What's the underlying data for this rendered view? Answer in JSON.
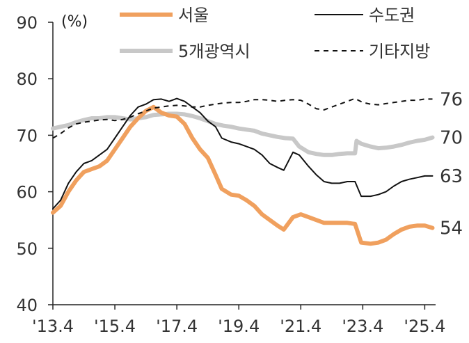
{
  "chart_data": {
    "type": "line",
    "unit_label": "(%)",
    "title": "",
    "xlabel": "",
    "ylabel": "",
    "ylim": [
      40,
      90
    ],
    "yticks": [
      40,
      50,
      60,
      70,
      80,
      90
    ],
    "xlim": [
      2013.25,
      2025.6
    ],
    "xticks": [
      {
        "label": "'13.4",
        "value": 2013.25
      },
      {
        "label": "'15.4",
        "value": 2015.25
      },
      {
        "label": "'17.4",
        "value": 2017.25
      },
      {
        "label": "'19.4",
        "value": 2019.25
      },
      {
        "label": "'21.4",
        "value": 2021.25
      },
      {
        "label": "'23.4",
        "value": 2023.25
      },
      {
        "label": "'25.4",
        "value": 2025.25
      }
    ],
    "grid": false,
    "legend_position": "top",
    "series": [
      {
        "name": "서울",
        "color": "#F0A05E",
        "style": "solid-thick",
        "end_label": "54",
        "points": [
          [
            2013.25,
            56.3
          ],
          [
            2013.5,
            57.5
          ],
          [
            2013.75,
            60
          ],
          [
            2014,
            62
          ],
          [
            2014.25,
            63.5
          ],
          [
            2014.5,
            64
          ],
          [
            2014.75,
            64.5
          ],
          [
            2015,
            65.5
          ],
          [
            2015.25,
            67.5
          ],
          [
            2015.5,
            69.5
          ],
          [
            2015.75,
            71.5
          ],
          [
            2016,
            73
          ],
          [
            2016.25,
            74.3
          ],
          [
            2016.5,
            75
          ],
          [
            2016.75,
            74
          ],
          [
            2017,
            73.5
          ],
          [
            2017.25,
            73.3
          ],
          [
            2017.5,
            72
          ],
          [
            2017.75,
            69.5
          ],
          [
            2018,
            67.5
          ],
          [
            2018.25,
            66
          ],
          [
            2018.5,
            63
          ],
          [
            2018.7,
            60.5
          ],
          [
            2019,
            59.5
          ],
          [
            2019.25,
            59.3
          ],
          [
            2019.5,
            58.5
          ],
          [
            2019.75,
            57.5
          ],
          [
            2020,
            56
          ],
          [
            2020.25,
            55
          ],
          [
            2020.5,
            54
          ],
          [
            2020.7,
            53.3
          ],
          [
            2021,
            55.5
          ],
          [
            2021.25,
            56
          ],
          [
            2021.5,
            55.5
          ],
          [
            2021.75,
            55
          ],
          [
            2022,
            54.5
          ],
          [
            2022.25,
            54.5
          ],
          [
            2022.5,
            54.5
          ],
          [
            2022.75,
            54.5
          ],
          [
            2023,
            54.3
          ],
          [
            2023.2,
            51
          ],
          [
            2023.5,
            50.8
          ],
          [
            2023.75,
            51
          ],
          [
            2024,
            51.5
          ],
          [
            2024.25,
            52.5
          ],
          [
            2024.5,
            53.3
          ],
          [
            2024.75,
            53.8
          ],
          [
            2025,
            54
          ],
          [
            2025.25,
            54
          ],
          [
            2025.5,
            53.6
          ]
        ]
      },
      {
        "name": "수도권",
        "color": "#111111",
        "style": "solid",
        "end_label": "63",
        "points": [
          [
            2013.25,
            57
          ],
          [
            2013.5,
            58.5
          ],
          [
            2013.75,
            61.5
          ],
          [
            2014,
            63.5
          ],
          [
            2014.25,
            65
          ],
          [
            2014.5,
            65.5
          ],
          [
            2014.75,
            66.5
          ],
          [
            2015,
            67.5
          ],
          [
            2015.25,
            69.5
          ],
          [
            2015.5,
            71.5
          ],
          [
            2015.75,
            73.5
          ],
          [
            2016,
            75
          ],
          [
            2016.25,
            75.5
          ],
          [
            2016.5,
            76.3
          ],
          [
            2016.75,
            76.4
          ],
          [
            2017,
            76
          ],
          [
            2017.25,
            76.5
          ],
          [
            2017.5,
            76
          ],
          [
            2017.75,
            75
          ],
          [
            2018,
            74
          ],
          [
            2018.25,
            72.5
          ],
          [
            2018.5,
            71.5
          ],
          [
            2018.7,
            69.5
          ],
          [
            2019,
            68.8
          ],
          [
            2019.25,
            68.5
          ],
          [
            2019.5,
            68
          ],
          [
            2019.75,
            67.5
          ],
          [
            2020,
            66.5
          ],
          [
            2020.25,
            65
          ],
          [
            2020.5,
            64.3
          ],
          [
            2020.7,
            63.8
          ],
          [
            2021,
            67
          ],
          [
            2021.2,
            66.5
          ],
          [
            2021.5,
            64.5
          ],
          [
            2021.75,
            63
          ],
          [
            2022,
            61.8
          ],
          [
            2022.25,
            61.5
          ],
          [
            2022.5,
            61.5
          ],
          [
            2022.75,
            61.8
          ],
          [
            2023,
            61.8
          ],
          [
            2023.2,
            59.2
          ],
          [
            2023.5,
            59.2
          ],
          [
            2023.75,
            59.5
          ],
          [
            2024,
            60
          ],
          [
            2024.25,
            61
          ],
          [
            2024.5,
            61.8
          ],
          [
            2024.75,
            62.2
          ],
          [
            2025,
            62.5
          ],
          [
            2025.25,
            62.8
          ],
          [
            2025.5,
            62.8
          ]
        ]
      },
      {
        "name": "5개광역시",
        "color": "#C8C8C8",
        "style": "solid-thick",
        "end_label": "70",
        "points": [
          [
            2013.25,
            71.2
          ],
          [
            2013.5,
            71.5
          ],
          [
            2013.75,
            71.8
          ],
          [
            2014,
            72.3
          ],
          [
            2014.25,
            72.7
          ],
          [
            2014.5,
            73
          ],
          [
            2014.75,
            73
          ],
          [
            2015,
            73.2
          ],
          [
            2015.25,
            73.2
          ],
          [
            2015.5,
            73
          ],
          [
            2015.75,
            72.8
          ],
          [
            2016,
            73
          ],
          [
            2016.25,
            73.2
          ],
          [
            2016.5,
            73.6
          ],
          [
            2016.75,
            73.7
          ],
          [
            2017,
            73.8
          ],
          [
            2017.25,
            73.8
          ],
          [
            2017.5,
            73.7
          ],
          [
            2017.75,
            73.4
          ],
          [
            2018,
            73
          ],
          [
            2018.25,
            72.5
          ],
          [
            2018.5,
            72
          ],
          [
            2018.75,
            71.7
          ],
          [
            2019,
            71.5
          ],
          [
            2019.25,
            71.2
          ],
          [
            2019.5,
            71
          ],
          [
            2019.75,
            70.8
          ],
          [
            2020,
            70.3
          ],
          [
            2020.25,
            70
          ],
          [
            2020.5,
            69.7
          ],
          [
            2020.75,
            69.5
          ],
          [
            2021,
            69.4
          ],
          [
            2021.2,
            68
          ],
          [
            2021.5,
            67
          ],
          [
            2021.75,
            66.7
          ],
          [
            2022,
            66.5
          ],
          [
            2022.25,
            66.5
          ],
          [
            2022.5,
            66.7
          ],
          [
            2022.75,
            66.8
          ],
          [
            2023,
            66.8
          ],
          [
            2023.05,
            69
          ],
          [
            2023.2,
            68.5
          ],
          [
            2023.5,
            68
          ],
          [
            2023.75,
            67.7
          ],
          [
            2024,
            67.8
          ],
          [
            2024.25,
            68
          ],
          [
            2024.5,
            68.3
          ],
          [
            2024.75,
            68.7
          ],
          [
            2025,
            69
          ],
          [
            2025.25,
            69.2
          ],
          [
            2025.5,
            69.6
          ]
        ]
      },
      {
        "name": "기타지방",
        "color": "#111111",
        "style": "dashed",
        "end_label": "76",
        "points": [
          [
            2013.25,
            69.5
          ],
          [
            2013.5,
            70.3
          ],
          [
            2013.75,
            71.3
          ],
          [
            2014,
            72
          ],
          [
            2014.25,
            72.3
          ],
          [
            2014.5,
            72.5
          ],
          [
            2014.75,
            72.7
          ],
          [
            2015,
            72.8
          ],
          [
            2015.25,
            72.6
          ],
          [
            2015.5,
            72.8
          ],
          [
            2015.75,
            73.2
          ],
          [
            2016,
            73.8
          ],
          [
            2016.25,
            74.3
          ],
          [
            2016.5,
            74.8
          ],
          [
            2016.75,
            75
          ],
          [
            2017,
            75.2
          ],
          [
            2017.25,
            75.3
          ],
          [
            2017.5,
            75.2
          ],
          [
            2017.75,
            75
          ],
          [
            2018,
            75
          ],
          [
            2018.25,
            75.3
          ],
          [
            2018.5,
            75.5
          ],
          [
            2018.75,
            75.7
          ],
          [
            2019,
            75.8
          ],
          [
            2019.25,
            75.8
          ],
          [
            2019.5,
            76
          ],
          [
            2019.75,
            76.3
          ],
          [
            2020,
            76.3
          ],
          [
            2020.25,
            76.2
          ],
          [
            2020.5,
            76
          ],
          [
            2020.75,
            76.2
          ],
          [
            2021,
            76.3
          ],
          [
            2021.25,
            76.2
          ],
          [
            2021.5,
            75.5
          ],
          [
            2021.75,
            74.7
          ],
          [
            2022,
            74.5
          ],
          [
            2022.25,
            75
          ],
          [
            2022.5,
            75.5
          ],
          [
            2022.75,
            76
          ],
          [
            2023,
            76.5
          ],
          [
            2023.25,
            75.8
          ],
          [
            2023.5,
            75.5
          ],
          [
            2023.75,
            75.4
          ],
          [
            2024,
            75.6
          ],
          [
            2024.25,
            75.8
          ],
          [
            2024.5,
            76
          ],
          [
            2024.75,
            76.2
          ],
          [
            2025,
            76.2
          ],
          [
            2025.25,
            76.4
          ],
          [
            2025.5,
            76.4
          ]
        ]
      }
    ]
  }
}
